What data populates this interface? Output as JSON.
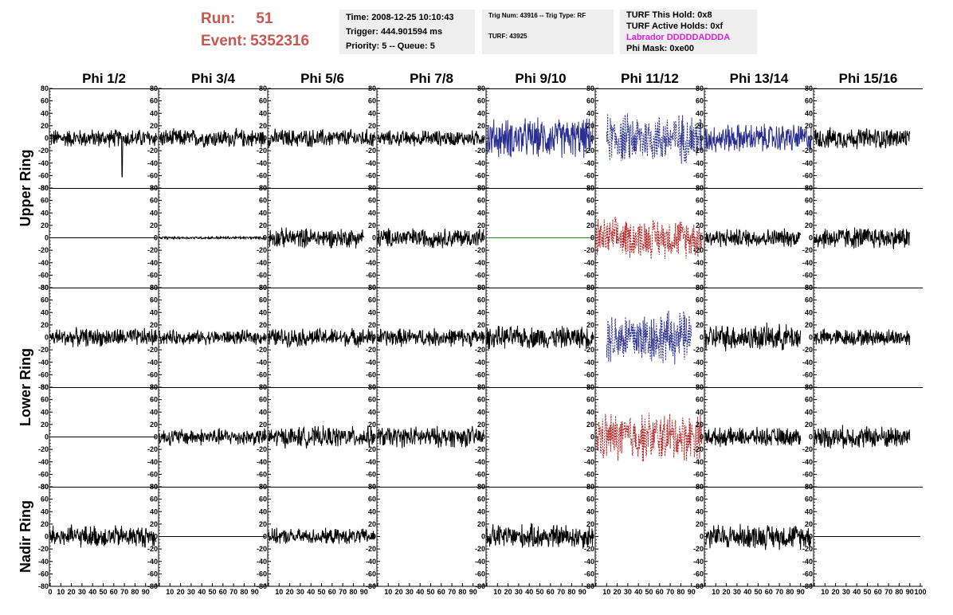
{
  "header": {
    "run_label": "Run:",
    "run_value": "51",
    "event_label": "Event:",
    "event_value": "5352316"
  },
  "info_box_1": {
    "time": "Time: 2008-12-25 10:10:43",
    "trigger": "Trigger: 444.901594 ms",
    "priority": "Priority: 5 -- Queue: 5"
  },
  "info_box_2": {
    "trig": "Trig Num: 43916 -- Trig Type: RF",
    "turf": "TURF: 43925"
  },
  "info_box_3": {
    "this_hold": "TURF This Hold: 0x8",
    "active_holds": "TURF Active Holds: 0xf",
    "labrador": "Labrador DDDDDADDDA",
    "phi_mask": "Phi Mask: 0xe00",
    "labrador_color": "#e020e0"
  },
  "chart_data": {
    "type": "line",
    "column_titles": [
      "Phi 1/2",
      "Phi 3/4",
      "Phi 5/6",
      "Phi 7/8",
      "Phi 9/10",
      "Phi 11/12",
      "Phi 13/14",
      "Phi 15/16"
    ],
    "ring_labels": [
      {
        "text": "Upper Ring",
        "rows": [
          0,
          1
        ]
      },
      {
        "text": "Lower Ring",
        "rows": [
          2,
          3
        ]
      },
      {
        "text": "Nadir Ring",
        "rows": [
          4,
          4
        ]
      }
    ],
    "ylim": [
      -80,
      80
    ],
    "yticks": [
      -80,
      -60,
      -40,
      -20,
      0,
      20,
      40,
      60,
      80
    ],
    "xlim": [
      0,
      100
    ],
    "xticks": [
      0,
      10,
      20,
      30,
      40,
      50,
      60,
      70,
      80,
      90,
      100
    ],
    "colors": {
      "normal": "#000000",
      "blue": "#2a2f8f",
      "red": "#b52020",
      "green": "#2a8a2a"
    },
    "panels": [
      [
        {
          "amp": 14,
          "color": "normal",
          "spike": [
            68,
            -62
          ]
        },
        {
          "amp": 14,
          "color": "normal"
        },
        {
          "amp": 14,
          "color": "normal"
        },
        {
          "amp": 12,
          "color": "normal"
        },
        {
          "amp": 30,
          "color": "blue",
          "dashed": false
        },
        {
          "amp": 38,
          "color": "blue",
          "dashed": true,
          "start": 10
        },
        {
          "amp": 22,
          "color": "blue",
          "dashed": false
        },
        {
          "amp": 16,
          "color": "normal",
          "end": 90
        }
      ],
      [
        {
          "amp": 0,
          "color": "normal"
        },
        {
          "amp": 2,
          "color": "normal"
        },
        {
          "amp": 15,
          "color": "normal",
          "end": 90
        },
        {
          "amp": 15,
          "color": "normal"
        },
        {
          "amp": 0,
          "color": "green"
        },
        {
          "amp": 30,
          "color": "red",
          "dashed": true
        },
        {
          "amp": 14,
          "color": "normal",
          "end": 90
        },
        {
          "amp": 17,
          "color": "normal",
          "end": 90
        }
      ],
      [
        {
          "amp": 14,
          "color": "normal"
        },
        {
          "amp": 11,
          "color": "normal"
        },
        {
          "amp": 14,
          "color": "normal"
        },
        {
          "amp": 14,
          "color": "normal"
        },
        {
          "amp": 17,
          "color": "normal"
        },
        {
          "amp": 40,
          "color": "blue",
          "dashed": true,
          "start": 10,
          "end": 90
        },
        {
          "amp": 20,
          "color": "normal",
          "end": 90
        },
        {
          "amp": 13,
          "color": "normal",
          "end": 90
        }
      ],
      [
        {
          "amp": 0,
          "color": "normal"
        },
        {
          "amp": 13,
          "color": "normal"
        },
        {
          "amp": 16,
          "color": "normal"
        },
        {
          "amp": 16,
          "color": "normal"
        },
        {
          "amp": 0,
          "color": "normal",
          "hidden": true
        },
        {
          "amp": 38,
          "color": "red",
          "dashed": true
        },
        {
          "amp": 14,
          "color": "normal",
          "end": 90
        },
        {
          "amp": 17,
          "color": "normal",
          "end": 90
        }
      ],
      [
        {
          "amp": 17,
          "color": "normal"
        },
        {
          "amp": 0,
          "color": "normal"
        },
        {
          "amp": 12,
          "color": "normal"
        },
        {
          "amp": 0,
          "color": "normal",
          "hidden": true
        },
        {
          "amp": 19,
          "color": "normal"
        },
        {
          "amp": 0,
          "color": "normal",
          "hidden": true
        },
        {
          "amp": 19,
          "color": "normal"
        },
        {
          "amp": 0,
          "color": "normal"
        }
      ]
    ]
  }
}
